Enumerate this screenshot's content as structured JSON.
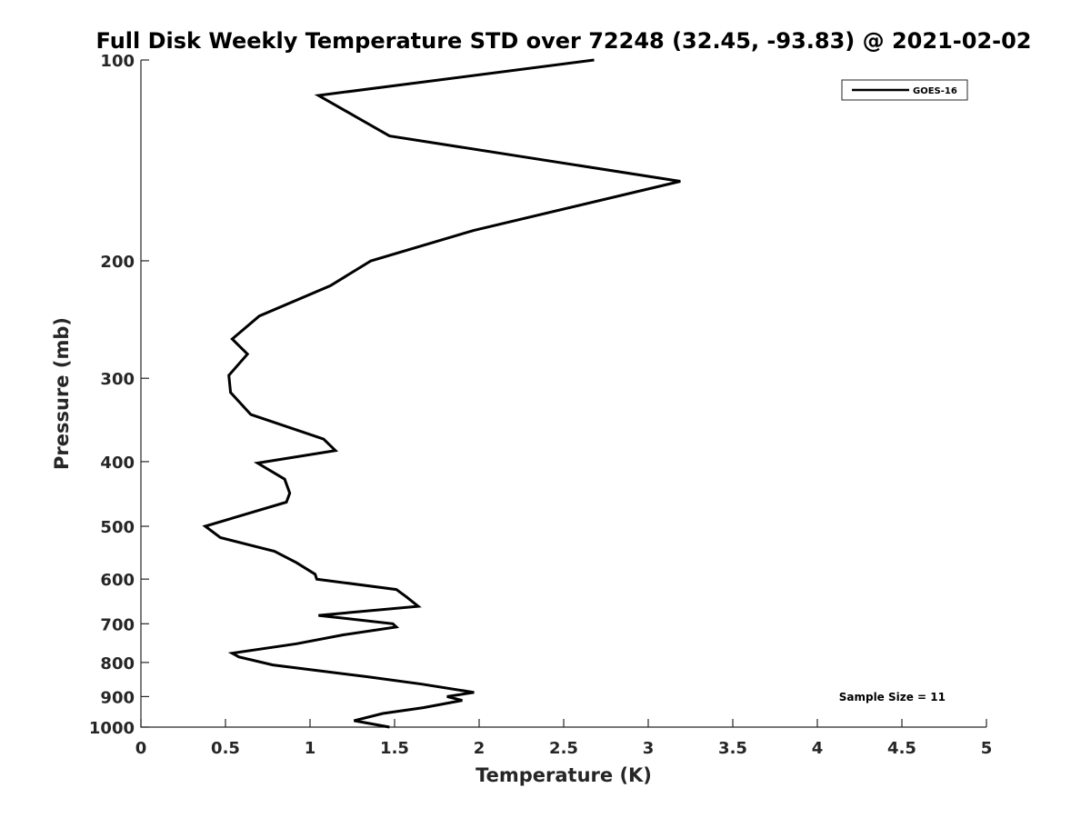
{
  "chart_data": {
    "type": "line",
    "title": "Full Disk Weekly Temperature STD over 72248 (32.45, -93.83) @ 2021-02-02",
    "xlabel": "Temperature (K)",
    "ylabel": "Pressure (mb)",
    "xlim": [
      0,
      5
    ],
    "ylim": [
      1000,
      100
    ],
    "y_scale": "log",
    "y_reversed": true,
    "x_ticks": [
      "0",
      "0.5",
      "1",
      "1.5",
      "2",
      "2.5",
      "3",
      "3.5",
      "4",
      "4.5",
      "5"
    ],
    "y_ticks": [
      "100",
      "200",
      "300",
      "400",
      "500",
      "600",
      "700",
      "800",
      "900",
      "1000"
    ],
    "grid": false,
    "legend_position": "top-right",
    "annotation": "Sample Size = 11",
    "series": [
      {
        "name": "GOES-16",
        "color": "#000000",
        "x": [
          2.68,
          1.05,
          1.47,
          3.19,
          1.97,
          1.36,
          1.12,
          0.7,
          0.54,
          0.63,
          0.52,
          0.53,
          0.65,
          1.08,
          1.15,
          0.69,
          0.85,
          0.88,
          0.86,
          0.38,
          0.47,
          0.79,
          0.92,
          1.03,
          1.04,
          1.51,
          1.57,
          1.64,
          1.05,
          1.49,
          1.51,
          1.2,
          0.92,
          0.54,
          0.58,
          0.78,
          1.33,
          1.66,
          1.97,
          1.81,
          1.9,
          1.67,
          1.43,
          1.26,
          1.47
        ],
        "y": [
          100,
          113,
          130,
          152,
          180,
          200,
          218,
          242,
          262,
          276,
          297,
          315,
          340,
          370,
          385,
          402,
          425,
          446,
          460,
          500,
          520,
          545,
          567,
          590,
          600,
          622,
          638,
          659,
          680,
          700,
          708,
          727,
          750,
          775,
          785,
          807,
          840,
          862,
          887,
          900,
          912,
          935,
          954,
          978,
          1000
        ]
      }
    ]
  }
}
